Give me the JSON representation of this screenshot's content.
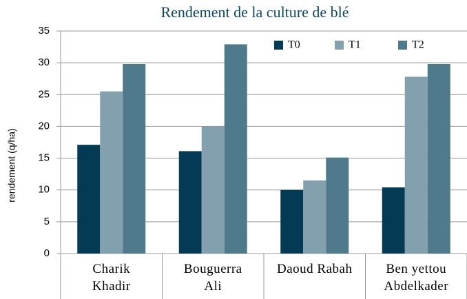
{
  "chart_data": {
    "type": "bar",
    "title": "Rendement de la culture de blé",
    "y_label": "rendement (q/ha)",
    "categories": [
      "Charik Khadir",
      "Bouguerra Ali",
      "Daoud Rabah",
      "Ben yettou Abdelkader"
    ],
    "series": [
      {
        "name": "T0",
        "color": "#053a54",
        "values": [
          17.1,
          16.1,
          10.0,
          10.4
        ]
      },
      {
        "name": "T1",
        "color": "#82a0ae",
        "values": [
          25.5,
          20.0,
          11.5,
          27.8
        ]
      },
      {
        "name": "T2",
        "color": "#4f7a8c",
        "values": [
          29.8,
          32.9,
          15.1,
          29.8
        ]
      }
    ],
    "ylim": [
      0,
      35
    ],
    "yticks": [
      0,
      5,
      10,
      15,
      20,
      25,
      30,
      35
    ],
    "grid": true,
    "legend": "top-right"
  }
}
